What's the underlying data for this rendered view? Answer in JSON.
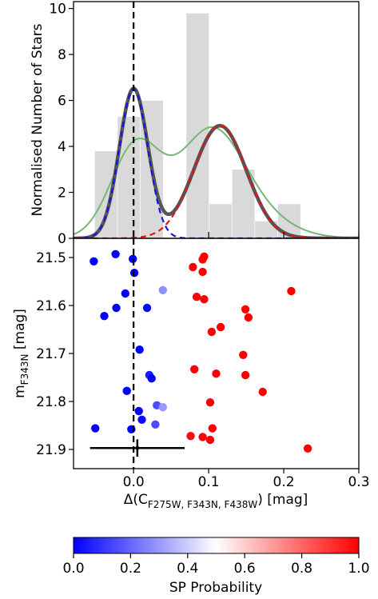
{
  "chart_data": [
    {
      "type": "bar",
      "panel": "histogram",
      "ylabel": "Normalised Number of Stars",
      "xlim": [
        -0.08,
        0.3
      ],
      "ylim": [
        0,
        10.3
      ],
      "yticks": [
        0,
        2,
        4,
        6,
        8,
        10
      ],
      "bin_edges": [
        -0.052,
        -0.0215,
        0.009,
        0.0395,
        0.07,
        0.1005,
        0.131,
        0.1615,
        0.192,
        0.2225
      ],
      "values": [
        3.8,
        5.3,
        6.0,
        0.0,
        9.8,
        1.5,
        3.0,
        0.75,
        1.5
      ],
      "vline_x": 0.0,
      "curves": [
        {
          "name": "total",
          "color": "#555555",
          "style": "solid-thick",
          "components": [
            {
              "amp": 6.5,
              "mu": 0.0,
              "sigma": 0.019
            },
            {
              "amp": 4.9,
              "mu": 0.115,
              "sigma": 0.035
            }
          ]
        },
        {
          "name": "component-1",
          "color": "#1414e6",
          "style": "dashed",
          "components": [
            {
              "amp": 6.5,
              "mu": 0.0,
              "sigma": 0.019
            }
          ]
        },
        {
          "name": "component-2",
          "color": "#e61414",
          "style": "dashed",
          "components": [
            {
              "amp": 4.9,
              "mu": 0.115,
              "sigma": 0.035
            }
          ]
        },
        {
          "name": "kde",
          "color": "#74b874",
          "style": "solid",
          "components": [
            {
              "amp": 4.0,
              "mu": 0.003,
              "sigma": 0.033
            },
            {
              "amp": 4.1,
              "mu": 0.1,
              "sigma": 0.042
            },
            {
              "amp": 1.1,
              "mu": 0.15,
              "sigma": 0.05
            }
          ]
        }
      ]
    },
    {
      "type": "scatter",
      "panel": "photometry",
      "xlabel_main": "Δ(C",
      "xlabel_sub": "F275W, F343N, F438W",
      "xlabel_tail": ") [mag]",
      "ylabel_main": "m",
      "ylabel_sub": "F343N",
      "ylabel_tail": " [mag]",
      "xlim": [
        -0.08,
        0.3
      ],
      "ylim": [
        21.94,
        21.46
      ],
      "xticks": [
        0.0,
        0.1,
        0.2,
        0.3
      ],
      "xtick_labels": [
        "0.0",
        "0.1",
        "0.2",
        "0.3"
      ],
      "yticks": [
        21.5,
        21.6,
        21.7,
        21.8,
        21.9
      ],
      "ytick_labels": [
        "21.5",
        "21.6",
        "21.7",
        "21.8",
        "21.9"
      ],
      "vline_x": 0.0,
      "points": [
        {
          "x": -0.053,
          "y": 21.508,
          "p": 0.0
        },
        {
          "x": -0.024,
          "y": 21.493,
          "p": 0.0
        },
        {
          "x": -0.001,
          "y": 21.503,
          "p": 0.0
        },
        {
          "x": 0.001,
          "y": 21.532,
          "p": 0.0
        },
        {
          "x": -0.011,
          "y": 21.575,
          "p": 0.0
        },
        {
          "x": 0.039,
          "y": 21.568,
          "p": 0.28
        },
        {
          "x": -0.023,
          "y": 21.605,
          "p": 0.0
        },
        {
          "x": -0.039,
          "y": 21.622,
          "p": 0.0
        },
        {
          "x": 0.018,
          "y": 21.605,
          "p": 0.02
        },
        {
          "x": 0.008,
          "y": 21.692,
          "p": 0.0
        },
        {
          "x": 0.021,
          "y": 21.745,
          "p": 0.05
        },
        {
          "x": 0.024,
          "y": 21.752,
          "p": 0.0
        },
        {
          "x": -0.009,
          "y": 21.778,
          "p": 0.0
        },
        {
          "x": 0.031,
          "y": 21.808,
          "p": 0.15
        },
        {
          "x": 0.039,
          "y": 21.812,
          "p": 0.3
        },
        {
          "x": 0.007,
          "y": 21.82,
          "p": 0.0
        },
        {
          "x": 0.011,
          "y": 21.838,
          "p": 0.02
        },
        {
          "x": 0.029,
          "y": 21.848,
          "p": 0.15
        },
        {
          "x": -0.051,
          "y": 21.856,
          "p": 0.0
        },
        {
          "x": -0.003,
          "y": 21.858,
          "p": 0.0
        },
        {
          "x": 0.094,
          "y": 21.498,
          "p": 1.0
        },
        {
          "x": 0.092,
          "y": 21.504,
          "p": 1.0
        },
        {
          "x": 0.079,
          "y": 21.52,
          "p": 1.0
        },
        {
          "x": 0.092,
          "y": 21.53,
          "p": 1.0
        },
        {
          "x": 0.084,
          "y": 21.582,
          "p": 1.0
        },
        {
          "x": 0.094,
          "y": 21.587,
          "p": 1.0
        },
        {
          "x": 0.21,
          "y": 21.57,
          "p": 1.0
        },
        {
          "x": 0.149,
          "y": 21.608,
          "p": 1.0
        },
        {
          "x": 0.153,
          "y": 21.625,
          "p": 1.0
        },
        {
          "x": 0.116,
          "y": 21.645,
          "p": 1.0
        },
        {
          "x": 0.104,
          "y": 21.655,
          "p": 1.0
        },
        {
          "x": 0.146,
          "y": 21.703,
          "p": 1.0
        },
        {
          "x": 0.081,
          "y": 21.733,
          "p": 1.0
        },
        {
          "x": 0.11,
          "y": 21.742,
          "p": 1.0
        },
        {
          "x": 0.149,
          "y": 21.745,
          "p": 1.0
        },
        {
          "x": 0.172,
          "y": 21.78,
          "p": 1.0
        },
        {
          "x": 0.102,
          "y": 21.802,
          "p": 1.0
        },
        {
          "x": 0.105,
          "y": 21.856,
          "p": 1.0
        },
        {
          "x": 0.076,
          "y": 21.872,
          "p": 0.98
        },
        {
          "x": 0.092,
          "y": 21.874,
          "p": 1.0
        },
        {
          "x": 0.102,
          "y": 21.88,
          "p": 1.0
        },
        {
          "x": 0.232,
          "y": 21.898,
          "p": 1.0
        }
      ],
      "error_bar": {
        "x": 0.005,
        "y": 21.897,
        "xerr": 0.063,
        "yerr": 0.018
      }
    }
  ],
  "colorbar": {
    "label": "SP Probability",
    "range": [
      0.0,
      1.0
    ],
    "ticks": [
      0.0,
      0.2,
      0.4,
      0.6,
      0.8,
      1.0
    ],
    "tick_labels": [
      "0.0",
      "0.2",
      "0.4",
      "0.6",
      "0.8",
      "1.0"
    ],
    "colormap": "bwr",
    "colors": {
      "low": "#0000ff",
      "mid": "#ffffff",
      "high": "#ff0000"
    }
  },
  "colors": {
    "histogram_bar": "#d9d9d9",
    "vline": "#000000",
    "error_bar": "#000000"
  }
}
